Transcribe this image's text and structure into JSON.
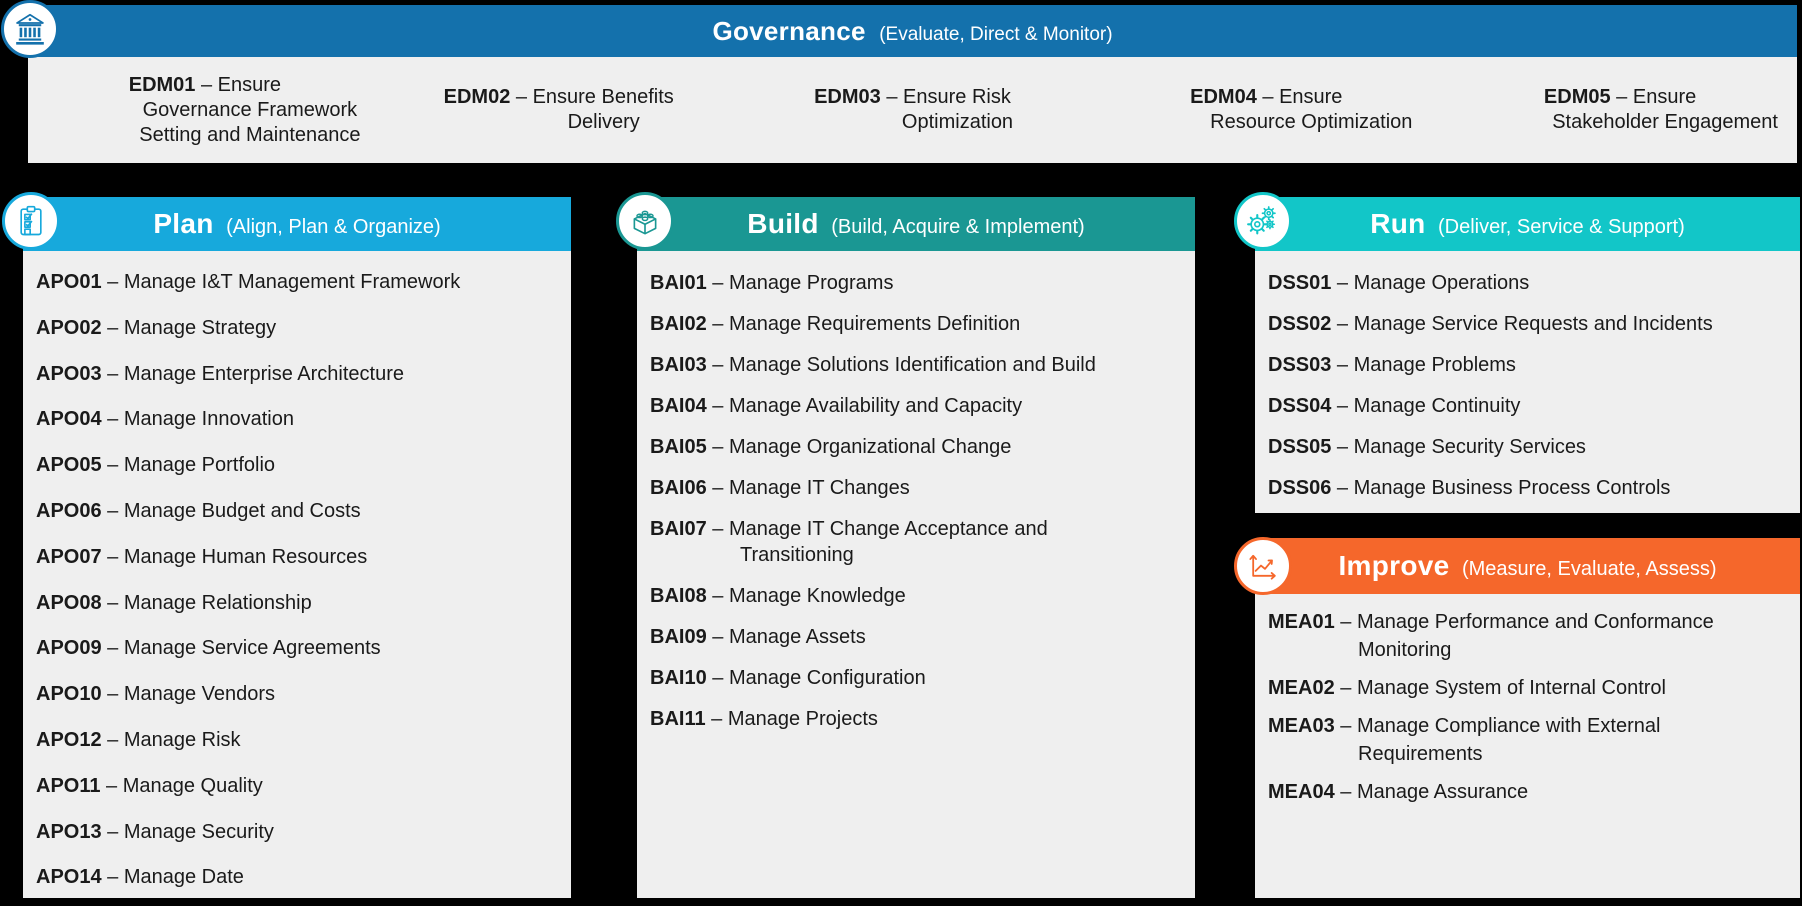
{
  "separator": "–",
  "background": "#000000",
  "panel_background": "#EFEFEF",
  "text_color": "#1A1A1A",
  "governance": {
    "accent": "#1471AC",
    "title": "Governance",
    "subtitle": "(Evaluate, Direct & Monitor)",
    "icon": "bank-icon",
    "processes": [
      {
        "code": "EDM01",
        "name": "Ensure\nGovernance Framework\nSetting and Maintenance"
      },
      {
        "code": "EDM02",
        "name": "Ensure Benefits\nDelivery"
      },
      {
        "code": "EDM03",
        "name": "Ensure Risk\nOptimization"
      },
      {
        "code": "EDM04",
        "name": "Ensure\nResource Optimization"
      },
      {
        "code": "EDM05",
        "name": "Ensure\nStakeholder Engagement"
      }
    ]
  },
  "columns": [
    {
      "id": "plan",
      "title": "Plan",
      "subtitle": "(Align, Plan & Organize)",
      "accent": "#17A9DC",
      "icon": "clipboard-icon",
      "processes": [
        {
          "code": "APO01",
          "name": "Manage I&T Management Framework"
        },
        {
          "code": "APO02",
          "name": "Manage Strategy"
        },
        {
          "code": "APO03",
          "name": "Manage Enterprise Architecture"
        },
        {
          "code": "APO04",
          "name": "Manage Innovation"
        },
        {
          "code": "APO05",
          "name": "Manage Portfolio"
        },
        {
          "code": "APO06",
          "name": "Manage Budget and Costs"
        },
        {
          "code": "APO07",
          "name": "Manage Human Resources"
        },
        {
          "code": "APO08",
          "name": "Manage Relationship"
        },
        {
          "code": "APO09",
          "name": "Manage Service Agreements"
        },
        {
          "code": "APO10",
          "name": "Manage Vendors"
        },
        {
          "code": "APO12",
          "name": "Manage Risk"
        },
        {
          "code": "APO11",
          "name": "Manage Quality"
        },
        {
          "code": "APO13",
          "name": "Manage Security"
        },
        {
          "code": "APO14",
          "name": "Manage Date"
        }
      ]
    },
    {
      "id": "build",
      "title": "Build",
      "subtitle": "(Build, Acquire & Implement)",
      "accent": "#1A9793",
      "icon": "lego-brick-icon",
      "processes": [
        {
          "code": "BAI01",
          "name": "Manage Programs"
        },
        {
          "code": "BAI02",
          "name": "Manage Requirements Definition"
        },
        {
          "code": "BAI03",
          "name": "Manage Solutions Identification and Build"
        },
        {
          "code": "BAI04",
          "name": "Manage Availability and Capacity"
        },
        {
          "code": "BAI05",
          "name": "Manage Organizational Change"
        },
        {
          "code": "BAI06",
          "name": "Manage IT Changes"
        },
        {
          "code": "BAI07",
          "name": "Manage IT Change Acceptance and\nTransitioning"
        },
        {
          "code": "BAI08",
          "name": "Manage Knowledge"
        },
        {
          "code": "BAI09",
          "name": "Manage Assets"
        },
        {
          "code": "BAI10",
          "name": "Manage Configuration"
        },
        {
          "code": "BAI11",
          "name": "Manage Projects"
        }
      ]
    },
    {
      "id": "run",
      "title": "Run",
      "subtitle": "(Deliver, Service & Support)",
      "accent": "#12C6C8",
      "icon": "gears-icon",
      "processes": [
        {
          "code": "DSS01",
          "name": "Manage Operations"
        },
        {
          "code": "DSS02",
          "name": "Manage Service Requests and Incidents"
        },
        {
          "code": "DSS03",
          "name": "Manage Problems"
        },
        {
          "code": "DSS04",
          "name": "Manage Continuity"
        },
        {
          "code": "DSS05",
          "name": "Manage Security Services"
        },
        {
          "code": "DSS06",
          "name": "Manage Business Process Controls"
        }
      ]
    },
    {
      "id": "improve",
      "title": "Improve",
      "subtitle": "(Measure, Evaluate, Assess)",
      "accent": "#F5672B",
      "icon": "line-chart-icon",
      "processes": [
        {
          "code": "MEA01",
          "name": "Manage Performance and Conformance\nMonitoring"
        },
        {
          "code": "MEA02",
          "name": "Manage System of Internal Control"
        },
        {
          "code": "MEA03",
          "name": "Manage Compliance with External\nRequirements"
        },
        {
          "code": "MEA04",
          "name": "Manage Assurance"
        }
      ]
    }
  ]
}
